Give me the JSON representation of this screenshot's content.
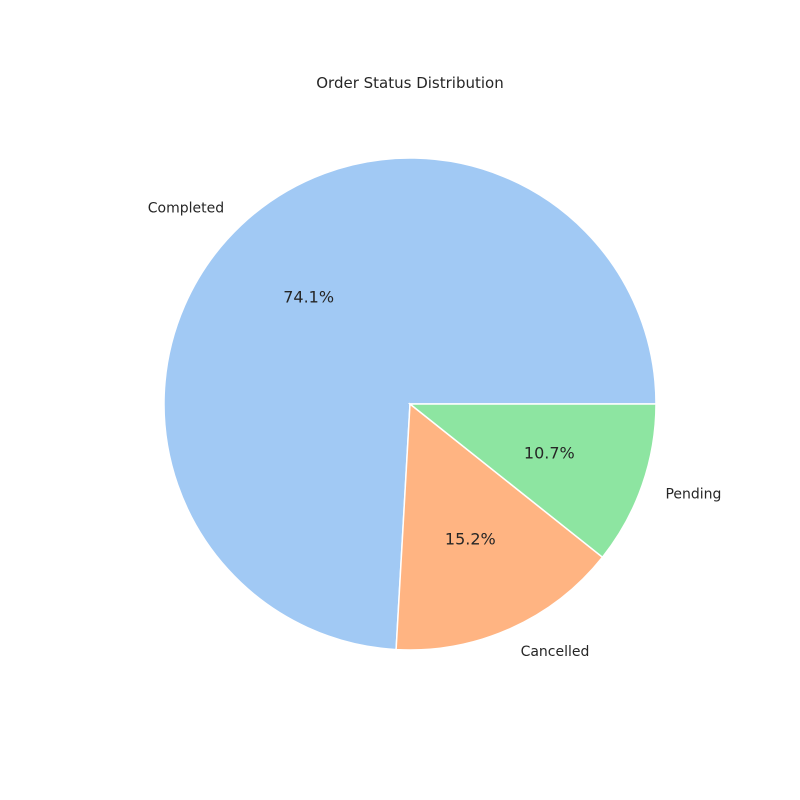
{
  "chart_data": {
    "type": "pie",
    "title": "Order Status Distribution",
    "categories": [
      "Completed",
      "Cancelled",
      "Pending"
    ],
    "values": [
      74.1,
      15.2,
      10.7
    ],
    "value_labels": [
      "74.1%",
      "15.2%",
      "10.7%"
    ],
    "colors": [
      "#a1c9f4",
      "#ffb482",
      "#8de5a1"
    ],
    "start_angle_deg": 0,
    "direction": "counterclockwise",
    "legend": "none"
  }
}
